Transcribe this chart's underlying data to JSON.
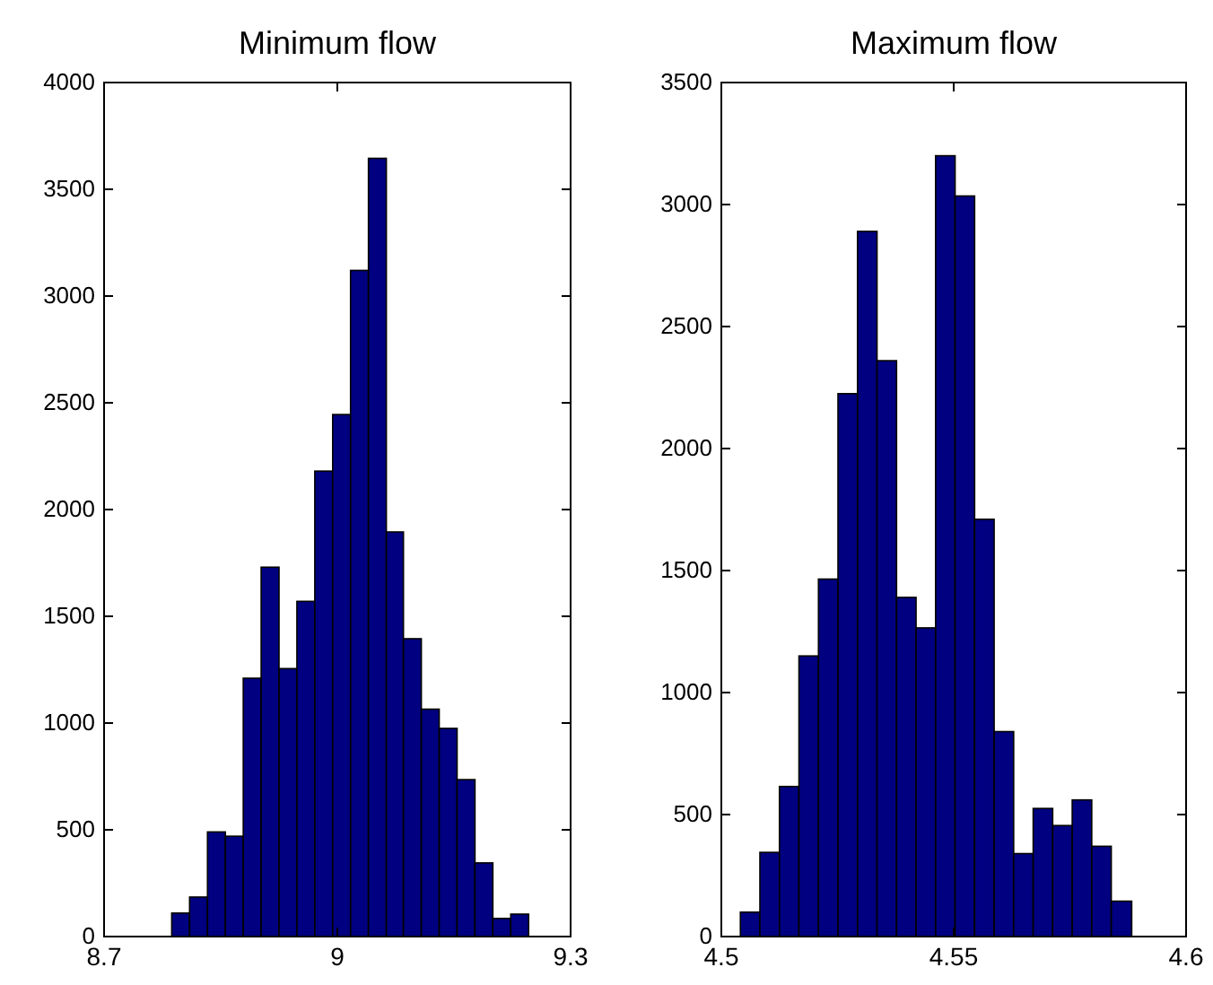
{
  "chart_data": [
    {
      "type": "histogram",
      "title": "Minimum flow",
      "color": "#000080",
      "bins": [
        8.787,
        8.81,
        8.833,
        8.856,
        8.879,
        8.902,
        8.925,
        8.948,
        8.971,
        8.994,
        9.017,
        9.04,
        9.063,
        9.085,
        9.108,
        9.131,
        9.154,
        9.177,
        9.2,
        9.223,
        9.246
      ],
      "values": [
        110,
        185,
        490,
        470,
        1210,
        1730,
        1255,
        1570,
        2180,
        2445,
        3120,
        3645,
        1895,
        1395,
        1065,
        975,
        735,
        345,
        85,
        105
      ],
      "xlim": [
        8.7,
        9.3
      ],
      "xticks": [
        8.7,
        9,
        9.3
      ],
      "ylim": [
        0,
        4000
      ],
      "yticks": [
        0,
        500,
        1000,
        1500,
        2000,
        2500,
        3000,
        3500,
        4000
      ],
      "grid": false
    },
    {
      "type": "histogram",
      "title": "Maximum flow",
      "color": "#000080",
      "bins": [
        4.5041,
        4.5083,
        4.5125,
        4.5167,
        4.5209,
        4.5251,
        4.5293,
        4.5335,
        4.5377,
        4.5419,
        4.5461,
        4.5503,
        4.5545,
        4.5587,
        4.5629,
        4.5671,
        4.5713,
        4.5755,
        4.5797,
        4.5839,
        4.5883
      ],
      "values": [
        100,
        345,
        615,
        1150,
        1465,
        2225,
        2890,
        2360,
        1390,
        1265,
        3200,
        3035,
        1710,
        840,
        340,
        525,
        455,
        560,
        370,
        145
      ],
      "xlim": [
        4.5,
        4.6
      ],
      "xticks": [
        4.5,
        4.55,
        4.6
      ],
      "ylim": [
        0,
        3500
      ],
      "yticks": [
        0,
        500,
        1000,
        1500,
        2000,
        2500,
        3000,
        3500
      ],
      "grid": false
    }
  ]
}
